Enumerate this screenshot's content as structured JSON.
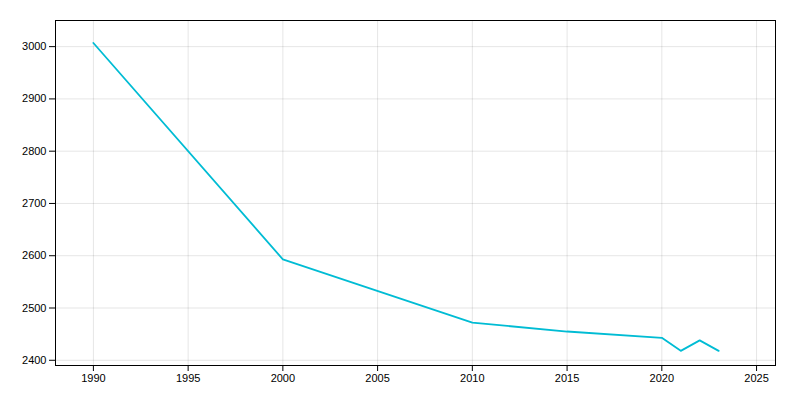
{
  "chart_data": {
    "type": "line",
    "x": [
      1990,
      2000,
      2010,
      2015,
      2020,
      2021,
      2022,
      2023
    ],
    "values": [
      3007,
      2593,
      2472,
      2455,
      2443,
      2418,
      2438,
      2418
    ],
    "color": "#00BCD4",
    "xlim": [
      1988,
      2026
    ],
    "ylim": [
      2390,
      3050
    ],
    "xticks": [
      1990,
      1995,
      2000,
      2005,
      2010,
      2015,
      2020,
      2025
    ],
    "yticks": [
      2400,
      2500,
      2600,
      2700,
      2800,
      2900,
      3000
    ],
    "grid": true
  }
}
